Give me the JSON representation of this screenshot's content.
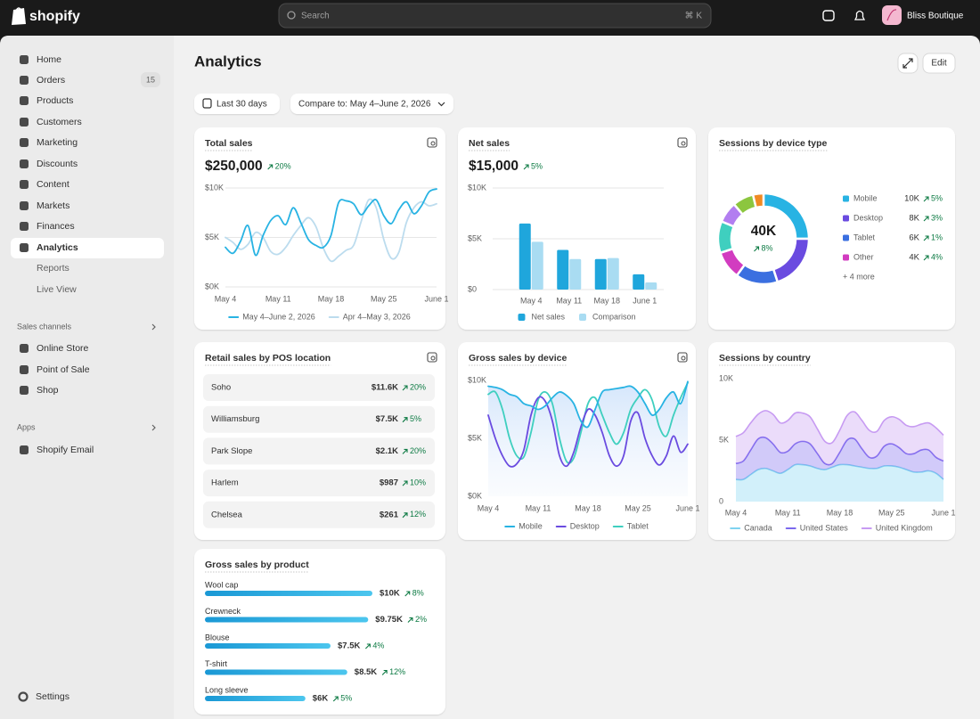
{
  "header": {
    "brand": "shopify",
    "search": "Search",
    "shortcut": "⌘ K",
    "store": "Bliss Boutique"
  },
  "sidebar": {
    "nav": [
      "Home",
      "Orders",
      "Products",
      "Customers",
      "Marketing",
      "Discounts",
      "Content",
      "Markets",
      "Finances",
      "Analytics"
    ],
    "orders_count": 15,
    "analytics_sub": [
      "Reports",
      "Live View"
    ],
    "sales_channels": "Sales channels",
    "channels": [
      "Online Store",
      "Point of Sale",
      "Shop"
    ],
    "apps": "Apps",
    "app_items": [
      "Shopify Email"
    ],
    "settings": "Settings"
  },
  "page": {
    "title": "Analytics",
    "edit": "Edit",
    "date_range": "Last 30 days",
    "compare": "Compare to: May 4–June 2, 2026"
  },
  "pos_table": {
    "title": "Retail sales by POS location",
    "rows": [
      [
        "Soho",
        "$11.6K",
        "20%"
      ],
      [
        "Williamsburg",
        "$7.5K",
        "5%"
      ],
      [
        "Park Slope",
        "$2.1K",
        "20%"
      ],
      [
        "Harlem",
        "$987",
        "10%"
      ],
      [
        "Chelsea",
        "$261",
        "12%"
      ]
    ]
  },
  "chart_data": [
    {
      "type": "line",
      "title": "Total sales",
      "kpi": "$250,000",
      "kpi_change": "20%",
      "grid": true,
      "categories": [
        "May 4",
        null,
        null,
        null,
        null,
        null,
        null,
        "May 11",
        null,
        null,
        null,
        null,
        null,
        null,
        "May 18",
        null,
        null,
        null,
        null,
        null,
        null,
        "May 25",
        null,
        null,
        null,
        null,
        null,
        null,
        "June 1"
      ],
      "ylim": [
        0,
        10000
      ],
      "yticks": [
        {
          "value": 0,
          "label": "$0K"
        },
        {
          "value": 5000,
          "label": "$5K"
        },
        {
          "value": 10000,
          "label": "$10K"
        }
      ],
      "series": [
        {
          "name": "May 4–June 2, 2026",
          "color": "#28b3e3",
          "values": [
            4000,
            3400,
            4600,
            6200,
            3200,
            5200,
            6700,
            7200,
            6300,
            8000,
            6500,
            4800,
            4200,
            4000,
            5200,
            8500,
            8700,
            8400,
            7300,
            8200,
            8800,
            7200,
            6400,
            7800,
            8600,
            7400,
            8200,
            9600,
            9900
          ]
        },
        {
          "name": "Apr 4–May 3, 2026",
          "color": "#bcdcee",
          "values": [
            5000,
            4500,
            3800,
            4300,
            5500,
            5000,
            3600,
            3300,
            4000,
            5200,
            6200,
            7000,
            6100,
            3900,
            2600,
            3100,
            3700,
            4200,
            6600,
            8800,
            8000,
            4800,
            2900,
            3500,
            6500,
            8000,
            8600,
            8200,
            8400
          ]
        }
      ]
    },
    {
      "type": "bar",
      "title": "Net sales",
      "kpi": "$15,000",
      "kpi_change": "5%",
      "grid": true,
      "categories": [
        "May 4",
        "May 11",
        "May 18",
        "June 1"
      ],
      "ylim": [
        0,
        10000
      ],
      "yticks": [
        {
          "value": 0,
          "label": "$0"
        },
        {
          "value": 5000,
          "label": "$5K"
        },
        {
          "value": 10000,
          "label": "$10K"
        }
      ],
      "series": [
        {
          "name": "Net sales",
          "color": "#1fa6dc",
          "values": [
            6500,
            3900,
            3000,
            1500
          ]
        },
        {
          "name": "Comparison",
          "color": "#a9dcf2",
          "values": [
            4700,
            3000,
            3100,
            700
          ]
        }
      ]
    },
    {
      "type": "donut",
      "title": "Sessions by device type",
      "kpi": "40K",
      "kpi_change": "8%",
      "more": "+ 4 more",
      "categories": [
        "Mobile",
        "Desktop",
        "Tablet",
        "Other",
        null,
        null,
        null,
        null
      ],
      "values": [
        10000,
        8000,
        6000,
        4000,
        4500,
        3000,
        3000,
        1500
      ],
      "value_labels": [
        "10K",
        "8K",
        "6K",
        "4K",
        null,
        null,
        null,
        null
      ],
      "changes": [
        "5%",
        "3%",
        "1%",
        "4%",
        null,
        null,
        null,
        null
      ],
      "colors": [
        "#28b3e3",
        "#6a4be0",
        "#3b6fe0",
        "#d23cc0",
        "#3fcfbf",
        "#b27ef0",
        "#8cc63f",
        "#f08a24"
      ]
    },
    {
      "type": "line",
      "title": "Gross sales by device",
      "grid": false,
      "area": true,
      "categories": [
        "May 4",
        null,
        null,
        null,
        null,
        null,
        null,
        "May 11",
        null,
        null,
        null,
        null,
        null,
        null,
        "May 18",
        null,
        null,
        null,
        null,
        null,
        null,
        "May 25",
        null,
        null,
        null,
        null,
        null,
        null,
        "June 1"
      ],
      "ylim": [
        0,
        10000
      ],
      "yticks": [
        {
          "value": 0,
          "label": "$0K"
        },
        {
          "value": 5000,
          "label": "$5K"
        },
        {
          "value": 10000,
          "label": "$10K"
        }
      ],
      "series": [
        {
          "name": "Mobile",
          "color": "#28b3e3",
          "values": [
            9500,
            9400,
            9200,
            8800,
            8600,
            8000,
            7800,
            7500,
            7800,
            8500,
            9000,
            8700,
            8000,
            6500,
            6000,
            7500,
            9000,
            9200,
            9300,
            9400,
            9500,
            9000,
            8000,
            7000,
            7500,
            8500,
            9000,
            8000,
            9900
          ]
        },
        {
          "name": "Desktop",
          "color": "#6a4be0",
          "values": [
            7000,
            5000,
            3500,
            2600,
            2800,
            4000,
            7000,
            8500,
            8200,
            6500,
            3500,
            2600,
            3800,
            6000,
            7500,
            7000,
            5500,
            3500,
            2600,
            3500,
            6500,
            7200,
            5000,
            3500,
            2700,
            3500,
            5200,
            3800,
            4500
          ]
        },
        {
          "name": "Tablet",
          "color": "#3fcfbf",
          "values": [
            8800,
            9000,
            7500,
            5000,
            3500,
            3400,
            5500,
            8300,
            9000,
            8000,
            5000,
            3000,
            3300,
            5500,
            8000,
            8500,
            7000,
            5500,
            4500,
            5500,
            7500,
            8500,
            9200,
            8300,
            6000,
            5200,
            7000,
            8500,
            9800
          ]
        }
      ]
    },
    {
      "type": "stacked_area",
      "title": "Sessions by country",
      "grid": false,
      "categories": [
        "May 4",
        null,
        null,
        null,
        null,
        null,
        null,
        "May 11",
        null,
        null,
        null,
        null,
        null,
        null,
        "May 18",
        null,
        null,
        null,
        null,
        null,
        null,
        "May 25",
        null,
        null,
        null,
        null,
        null,
        null,
        "June 1"
      ],
      "ylim": [
        0,
        10000
      ],
      "yticks": [
        0,
        {
          "value": 5000,
          "label": "5K"
        },
        {
          "value": 10000,
          "label": "10K"
        }
      ],
      "series": [
        {
          "name": "Canada",
          "color": "#7fd3f0",
          "values": [
            1800,
            1800,
            2200,
            2600,
            2700,
            2500,
            2300,
            2600,
            3000,
            3000,
            2900,
            2700,
            2600,
            2800,
            3000,
            3000,
            2900,
            2800,
            2700,
            2700,
            2900,
            2900,
            2800,
            2600,
            2400,
            2400,
            2500,
            2300,
            1800
          ]
        },
        {
          "name": "United States",
          "color": "#7b68ee",
          "values": [
            1300,
            1500,
            2000,
            2500,
            2500,
            2200,
            1700,
            1500,
            1700,
            1900,
            1800,
            1200,
            500,
            300,
            1000,
            2000,
            2200,
            1500,
            900,
            1000,
            1600,
            1800,
            1600,
            1300,
            1500,
            1800,
            1700,
            1300,
            1500
          ]
        },
        {
          "name": "United Kingdom",
          "color": "#c79bf2",
          "values": [
            2200,
            2300,
            2200,
            2000,
            2200,
            2400,
            2400,
            2500,
            2500,
            2300,
            2200,
            2000,
            1800,
            1700,
            1800,
            2000,
            2200,
            2300,
            2200,
            2000,
            2100,
            2200,
            2300,
            2300,
            2200,
            2100,
            2200,
            2400,
            2100
          ]
        }
      ]
    },
    {
      "type": "hbar",
      "title": "Gross sales by product",
      "categories": [
        "Wool cap",
        "Crewneck",
        "Blouse",
        "T-shirt",
        "Long sleeve"
      ],
      "values": [
        10000,
        9750,
        7500,
        8500,
        6000
      ],
      "value_labels": [
        "$10K",
        "$9.75K",
        "$7.5K",
        "$8.5K",
        "$6K"
      ],
      "changes": [
        "8%",
        "2%",
        "4%",
        "12%",
        "5%"
      ],
      "color": "#1fa6dc"
    }
  ]
}
